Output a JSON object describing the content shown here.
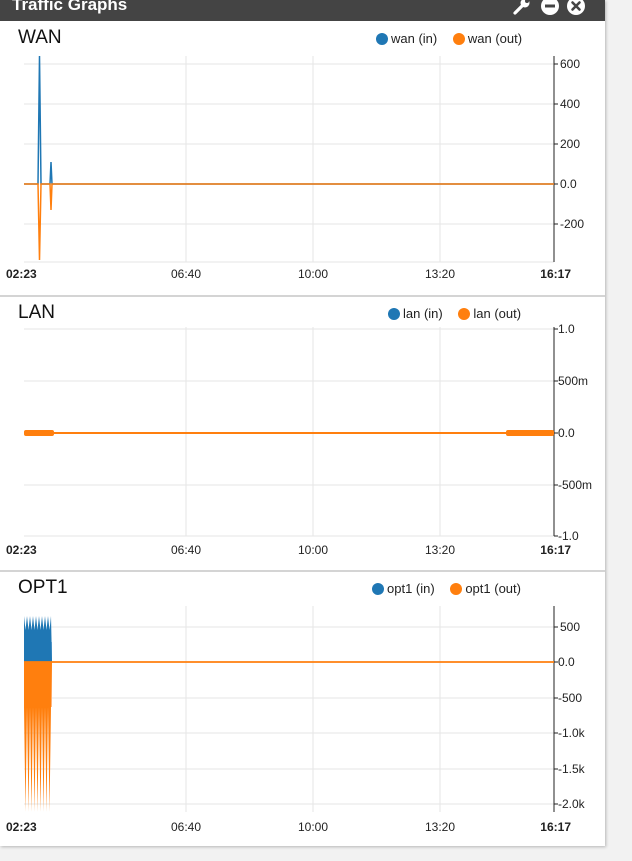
{
  "window": {
    "title": "Traffic Graphs"
  },
  "icons": [
    "wrench-icon",
    "minimize-icon",
    "close-icon"
  ],
  "colors": {
    "in": "#1f77b4",
    "out": "#ff7f0e",
    "titlebar": "#444444"
  },
  "x_ticks": [
    "02:23",
    "06:40",
    "10:00",
    "13:20",
    "16:17"
  ],
  "graphs": [
    {
      "title": "WAN",
      "legend": [
        "wan (in)",
        "wan (out)"
      ],
      "y_ticks": [
        "600",
        "400",
        "200",
        "0.0",
        "-200"
      ],
      "chart_data": {
        "type": "line",
        "x": [
          "02:23",
          "06:40",
          "10:00",
          "13:20",
          "16:17"
        ],
        "ylim": [
          -380,
          620
        ],
        "series": [
          {
            "name": "wan (in)",
            "values_note_x": [
              "02:29",
              "02:44"
            ],
            "peaks": [
              620,
              110
            ]
          },
          {
            "name": "wan (out)",
            "peaks": [
              -380,
              -130
            ]
          }
        ]
      }
    },
    {
      "title": "LAN",
      "legend": [
        "lan (in)",
        "lan (out)"
      ],
      "y_ticks": [
        "1.0",
        "500m",
        "0.0",
        "-500m",
        "-1.0"
      ],
      "chart_data": {
        "type": "line",
        "x": [
          "02:23",
          "06:40",
          "10:00",
          "13:20",
          "16:17"
        ],
        "ylim": [
          -1.0,
          1.0
        ],
        "series": [
          {
            "name": "lan (in)",
            "values": [
              0,
              0,
              0,
              0,
              0
            ]
          },
          {
            "name": "lan (out)",
            "values": [
              0,
              0,
              0,
              0,
              0
            ]
          }
        ]
      }
    },
    {
      "title": "OPT1",
      "legend": [
        "opt1 (in)",
        "opt1 (out)"
      ],
      "y_ticks": [
        "500",
        "0.0",
        "-500",
        "-1.0k",
        "-1.5k",
        "-2.0k"
      ],
      "chart_data": {
        "type": "area",
        "x": [
          "02:23",
          "06:40",
          "10:00",
          "13:20",
          "16:17"
        ],
        "ylim": [
          -2100,
          780
        ],
        "series": [
          {
            "name": "opt1 (in)",
            "max": 750
          },
          {
            "name": "opt1 (out)",
            "min": -2100
          }
        ]
      }
    }
  ]
}
